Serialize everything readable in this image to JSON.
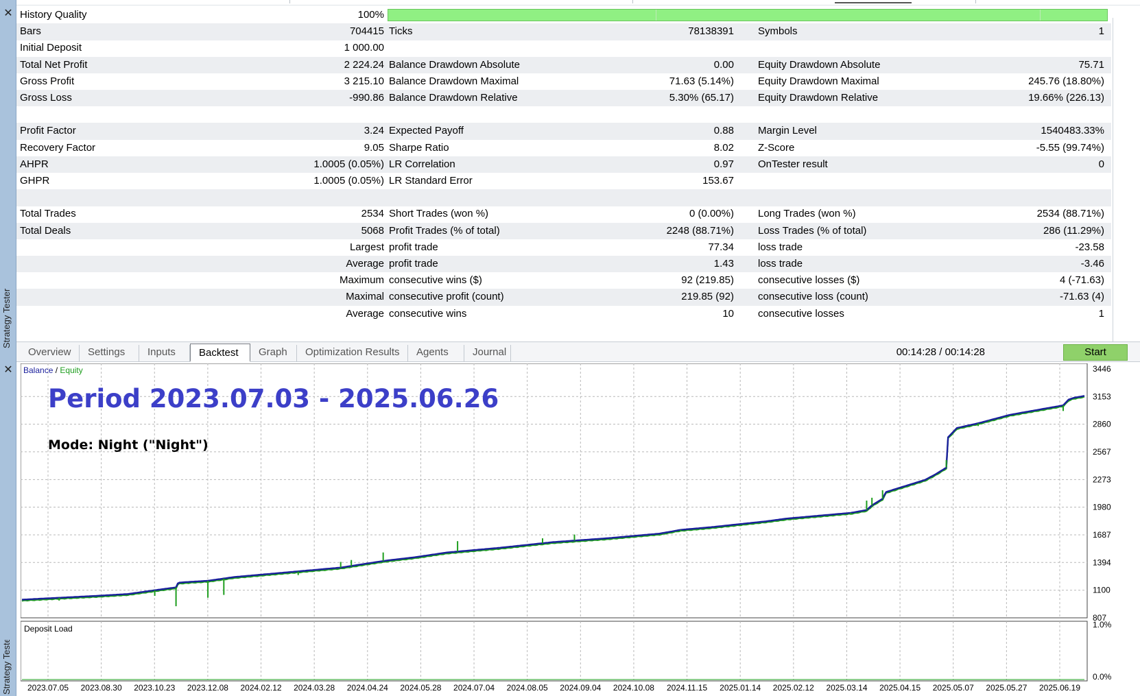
{
  "left_panel": {
    "label": "Strategy Tester",
    "close_glyph": "✕"
  },
  "stats": {
    "history_quality": {
      "label": "History Quality",
      "value": "100%"
    },
    "rows": [
      {
        "c1": "Bars",
        "v1": "704415",
        "c2": "Ticks",
        "v2": "78138391",
        "c3": "Symbols",
        "v3": "1"
      },
      {
        "c1": "Initial Deposit",
        "v1": "1 000.00",
        "c2": "",
        "v2": "",
        "c3": "",
        "v3": ""
      },
      {
        "c1": "Total Net Profit",
        "v1": "2 224.24",
        "c2": "Balance Drawdown Absolute",
        "v2": "0.00",
        "c3": "Equity Drawdown Absolute",
        "v3": "75.71"
      },
      {
        "c1": "Gross Profit",
        "v1": "3 215.10",
        "c2": "Balance Drawdown Maximal",
        "v2": "71.63 (5.14%)",
        "c3": "Equity Drawdown Maximal",
        "v3": "245.76 (18.80%)"
      },
      {
        "c1": "Gross Loss",
        "v1": "-990.86",
        "c2": "Balance Drawdown Relative",
        "v2": "5.30% (65.17)",
        "c3": "Equity Drawdown Relative",
        "v3": "19.66% (226.13)"
      },
      {
        "c1": "",
        "v1": "",
        "c2": "",
        "v2": "",
        "c3": "",
        "v3": ""
      },
      {
        "c1": "Profit Factor",
        "v1": "3.24",
        "c2": "Expected Payoff",
        "v2": "0.88",
        "c3": "Margin Level",
        "v3": "1540483.33%"
      },
      {
        "c1": "Recovery Factor",
        "v1": "9.05",
        "c2": "Sharpe Ratio",
        "v2": "8.02",
        "c3": "Z-Score",
        "v3": "-5.55 (99.74%)"
      },
      {
        "c1": "AHPR",
        "v1": "1.0005 (0.05%)",
        "c2": "LR Correlation",
        "v2": "0.97",
        "c3": "OnTester result",
        "v3": "0"
      },
      {
        "c1": "GHPR",
        "v1": "1.0005 (0.05%)",
        "c2": "LR Standard Error",
        "v2": "153.67",
        "c3": "",
        "v3": ""
      },
      {
        "c1": "",
        "v1": "",
        "c2": "",
        "v2": "",
        "c3": "",
        "v3": ""
      },
      {
        "c1": "Total Trades",
        "v1": "2534",
        "c2": "Short Trades (won %)",
        "v2": "0 (0.00%)",
        "c3": "Long Trades (won %)",
        "v3": "2534 (88.71%)"
      },
      {
        "c1": "Total Deals",
        "v1": "5068",
        "c2": "Profit Trades (% of total)",
        "v2": "2248 (88.71%)",
        "c3": "Loss Trades (% of total)",
        "v3": "286 (11.29%)"
      },
      {
        "c1": "",
        "v1": "Largest",
        "c2": "profit trade",
        "v2": "77.34",
        "c3": "loss trade",
        "v3": "-23.58"
      },
      {
        "c1": "",
        "v1": "Average",
        "c2": "profit trade",
        "v2": "1.43",
        "c3": "loss trade",
        "v3": "-3.46"
      },
      {
        "c1": "",
        "v1": "Maximum",
        "c2": "consecutive wins ($)",
        "v2": "92 (219.85)",
        "c3": "consecutive losses ($)",
        "v3": "4 (-71.63)"
      },
      {
        "c1": "",
        "v1": "Maximal",
        "c2": "consecutive profit (count)",
        "v2": "219.85 (92)",
        "c3": "consecutive loss (count)",
        "v3": "-71.63 (4)"
      },
      {
        "c1": "",
        "v1": "Average",
        "c2": "consecutive wins",
        "v2": "10",
        "c3": "consecutive losses",
        "v3": "1"
      }
    ]
  },
  "tabs": [
    {
      "label": "Overview",
      "active": false
    },
    {
      "label": "Settings",
      "active": false
    },
    {
      "label": "Inputs",
      "active": false
    },
    {
      "label": "Backtest",
      "active": true
    },
    {
      "label": "Graph",
      "active": false
    },
    {
      "label": "Optimization Results",
      "active": false
    },
    {
      "label": "Agents",
      "active": false
    },
    {
      "label": "Journal",
      "active": false
    }
  ],
  "timer": "00:14:28 / 00:14:28",
  "start_label": "Start",
  "colors": {
    "balance": "#1a1f9c",
    "equity": "#1e9e1e",
    "title": "#3c3fc8",
    "start": "#8fd16a",
    "hq": "#90f083"
  },
  "chart_data": {
    "type": "line",
    "legend": {
      "balance": "Balance",
      "separator": " / ",
      "equity": "Equity"
    },
    "title": "Period 2023.07.03 - 2025.06.26",
    "subtitle": "Mode: Night (\"Night\")",
    "ylim": [
      807,
      3446
    ],
    "y_ticks": [
      "3446",
      "3153",
      "2860",
      "2567",
      "2273",
      "1980",
      "1687",
      "1394",
      "1100",
      "807"
    ],
    "x_ticks": [
      "2023.07.05",
      "2023.08.30",
      "2023.10.23",
      "2023.12.08",
      "2024.02.12",
      "2024.03.28",
      "2024.04.24",
      "2024.05.28",
      "2024.07.04",
      "2024.08.05",
      "2024.09.04",
      "2024.10.08",
      "2024.11.15",
      "2025.01.14",
      "2025.02.12",
      "2025.03.14",
      "2025.04.15",
      "2025.05.07",
      "2025.05.27",
      "2025.06.19"
    ],
    "series": [
      {
        "name": "Balance",
        "points": [
          [
            0,
            1000
          ],
          [
            0.035,
            1020
          ],
          [
            0.07,
            1040
          ],
          [
            0.1,
            1060
          ],
          [
            0.125,
            1100
          ],
          [
            0.145,
            1130
          ],
          [
            0.147,
            1180
          ],
          [
            0.16,
            1190
          ],
          [
            0.175,
            1200
          ],
          [
            0.2,
            1240
          ],
          [
            0.25,
            1290
          ],
          [
            0.3,
            1340
          ],
          [
            0.34,
            1410
          ],
          [
            0.37,
            1450
          ],
          [
            0.4,
            1500
          ],
          [
            0.45,
            1550
          ],
          [
            0.5,
            1610
          ],
          [
            0.55,
            1650
          ],
          [
            0.6,
            1700
          ],
          [
            0.62,
            1740
          ],
          [
            0.65,
            1770
          ],
          [
            0.7,
            1830
          ],
          [
            0.72,
            1860
          ],
          [
            0.75,
            1890
          ],
          [
            0.78,
            1920
          ],
          [
            0.795,
            1950
          ],
          [
            0.8,
            2000
          ],
          [
            0.81,
            2070
          ],
          [
            0.813,
            2140
          ],
          [
            0.83,
            2200
          ],
          [
            0.85,
            2270
          ],
          [
            0.86,
            2330
          ],
          [
            0.87,
            2400
          ],
          [
            0.8712,
            2500
          ],
          [
            0.8715,
            2720
          ],
          [
            0.88,
            2820
          ],
          [
            0.9,
            2870
          ],
          [
            0.91,
            2900
          ],
          [
            0.93,
            2960
          ],
          [
            0.95,
            3000
          ],
          [
            0.98,
            3060
          ],
          [
            0.985,
            3120
          ],
          [
            0.99,
            3140
          ],
          [
            1,
            3160
          ]
        ]
      },
      {
        "name": "Equity",
        "follows": "Balance"
      }
    ],
    "equity_dips": [
      [
        0.035,
        990
      ],
      [
        0.122,
        1100
      ],
      [
        0.125,
        1040
      ],
      [
        0.145,
        930
      ],
      [
        0.175,
        1020
      ],
      [
        0.19,
        1050
      ],
      [
        0.26,
        1260
      ],
      [
        0.3,
        1400
      ],
      [
        0.31,
        1420
      ],
      [
        0.34,
        1500
      ],
      [
        0.41,
        1620
      ],
      [
        0.49,
        1650
      ],
      [
        0.52,
        1690
      ],
      [
        0.62,
        1730
      ],
      [
        0.72,
        1860
      ],
      [
        0.78,
        1910
      ],
      [
        0.795,
        2050
      ],
      [
        0.8,
        2080
      ],
      [
        0.81,
        2160
      ],
      [
        0.87,
        2480
      ],
      [
        0.9,
        2840
      ],
      [
        0.91,
        2890
      ],
      [
        0.98,
        3000
      ]
    ],
    "panel2": {
      "title": "Deposit Load",
      "y_ticks": [
        "1.0%",
        "0.0%"
      ],
      "ylim": [
        0,
        1.0
      ]
    }
  }
}
